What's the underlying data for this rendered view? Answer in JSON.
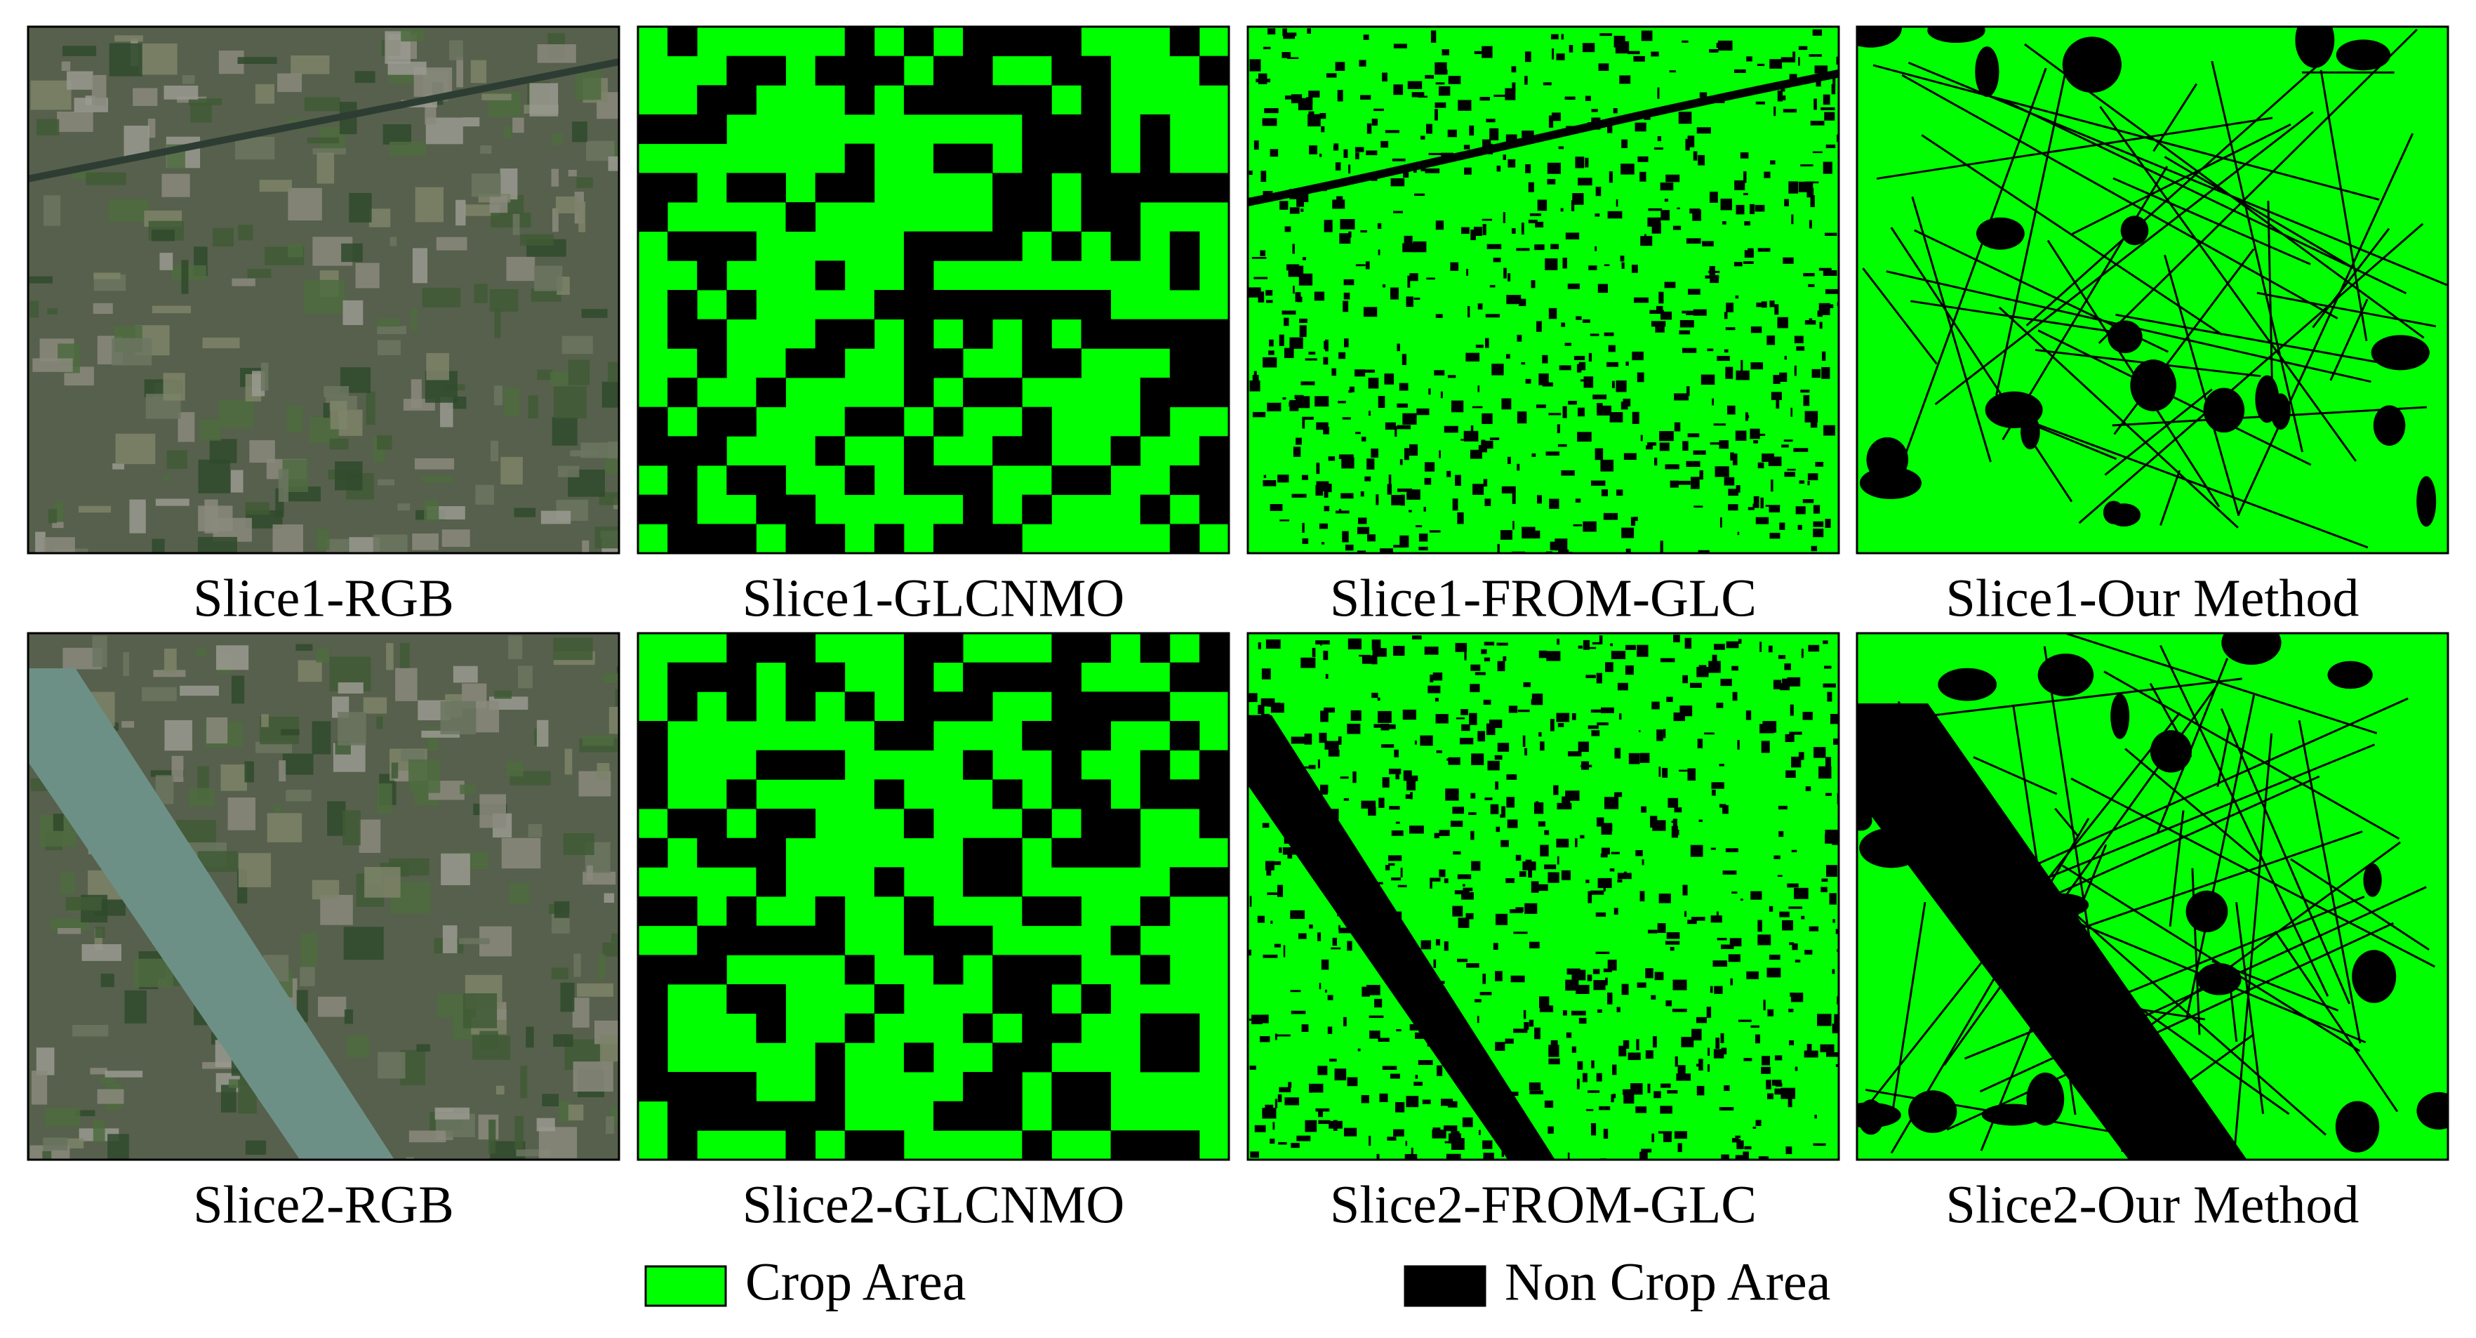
{
  "figure": {
    "panels": [
      [
        "Slice1-RGB",
        "Slice1-GLCNMO",
        "Slice1-FROM-GLC",
        "Slice1-Our Method"
      ],
      [
        "Slice2-RGB",
        "Slice2-GLCNMO",
        "Slice2-FROM-GLC",
        "Slice2-Our Method"
      ]
    ],
    "legend": [
      {
        "label": "Crop Area",
        "color": "#00ff00"
      },
      {
        "label": "Non Crop Area",
        "color": "#000000"
      }
    ]
  }
}
